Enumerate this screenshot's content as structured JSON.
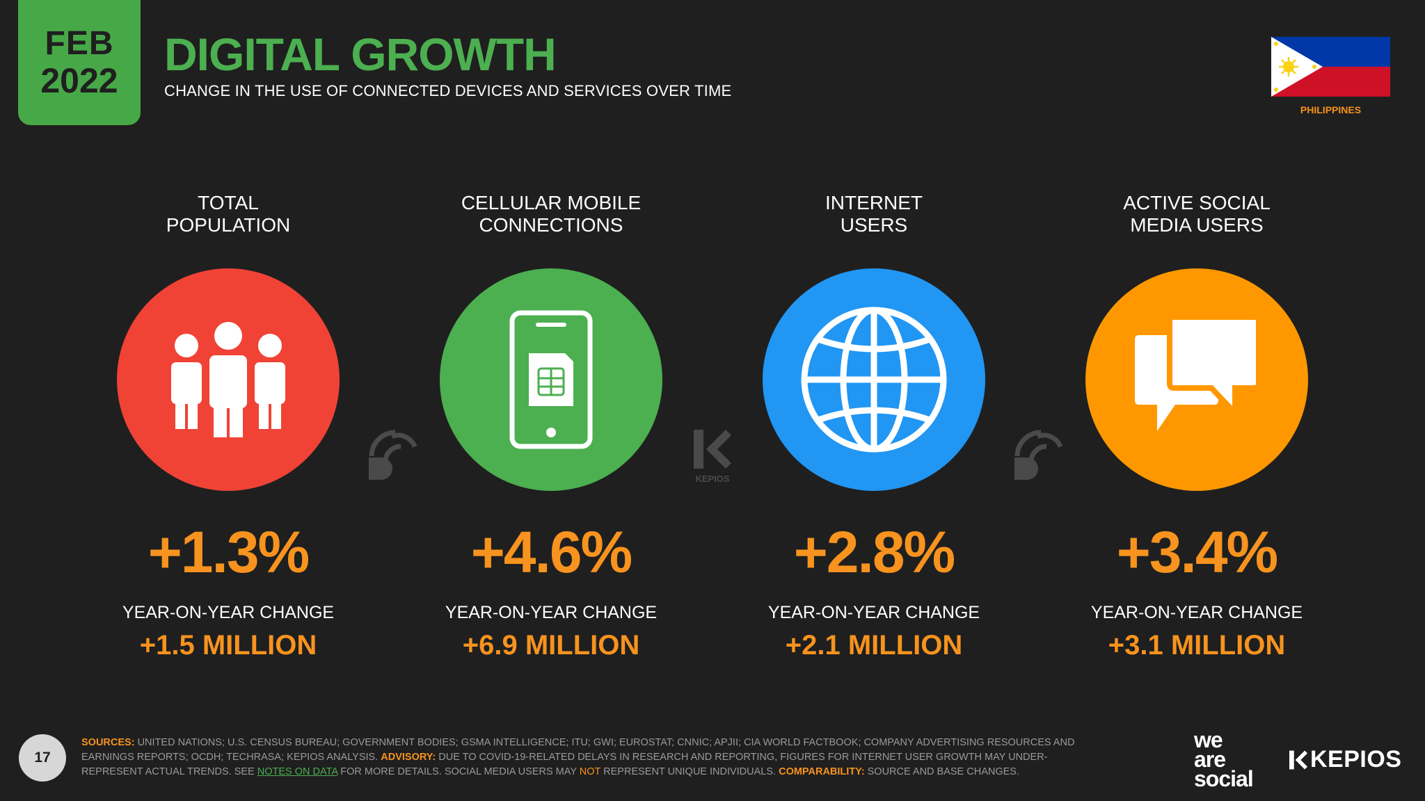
{
  "header": {
    "month": "FEB",
    "year": "2022",
    "title": "DIGITAL GROWTH",
    "subtitle": "CHANGE IN THE USE OF CONNECTED DEVICES AND SERVICES OVER TIME"
  },
  "country": {
    "name": "PHILIPPINES",
    "flag_icon": "philippines-flag-icon"
  },
  "colors": {
    "background": "#1f1f1f",
    "green": "#4caf50",
    "orange": "#f7931e",
    "red": "#f04336",
    "blue": "#2196f3",
    "amber": "#ff9800"
  },
  "stats": [
    {
      "label_line1": "TOTAL",
      "label_line2": "POPULATION",
      "icon": "people-icon",
      "color": "#f04336",
      "percent": "+1.3%",
      "yoy_label": "YEAR-ON-YEAR CHANGE",
      "absolute": "+1.5 MILLION"
    },
    {
      "label_line1": "CELLULAR MOBILE",
      "label_line2": "CONNECTIONS",
      "icon": "mobile-sim-icon",
      "color": "#4caf50",
      "percent": "+4.6%",
      "yoy_label": "YEAR-ON-YEAR CHANGE",
      "absolute": "+6.9 MILLION"
    },
    {
      "label_line1": "INTERNET",
      "label_line2": "USERS",
      "icon": "globe-icon",
      "color": "#2196f3",
      "percent": "+2.8%",
      "yoy_label": "YEAR-ON-YEAR CHANGE",
      "absolute": "+2.1 MILLION"
    },
    {
      "label_line1": "ACTIVE SOCIAL",
      "label_line2": "MEDIA USERS",
      "icon": "chat-bubbles-icon",
      "color": "#ff9800",
      "percent": "+3.4%",
      "yoy_label": "YEAR-ON-YEAR CHANGE",
      "absolute": "+3.1 MILLION"
    }
  ],
  "watermarks": {
    "kepios": "KEPIOS"
  },
  "footer": {
    "page_number": "17",
    "sources_label": "SOURCES:",
    "sources_text": " UNITED NATIONS; U.S. CENSUS BUREAU; GOVERNMENT BODIES; GSMA INTELLIGENCE; ITU; GWI; EUROSTAT; CNNIC; APJII; CIA WORLD FACTBOOK; COMPANY ADVERTISING RESOURCES AND EARNINGS REPORTS; OCDH; TECHRASA; KEPIOS ANALYSIS. ",
    "advisory_label": "ADVISORY:",
    "advisory_text": " DUE TO COVID-19-RELATED DELAYS IN RESEARCH AND REPORTING, FIGURES FOR INTERNET USER GROWTH MAY UNDER-REPRESENT ACTUAL TRENDS. SEE ",
    "notes_link": "NOTES ON DATA",
    "advisory_text2": " FOR MORE DETAILS. SOCIAL MEDIA USERS MAY ",
    "not_word": "NOT",
    "advisory_text3": " REPRESENT UNIQUE INDIVIDUALS. ",
    "comparability_label": "COMPARABILITY:",
    "comparability_text": " SOURCE AND BASE CHANGES.",
    "logo_was_line1": "we",
    "logo_was_line2": "are",
    "logo_was_line3": "social",
    "logo_kepios": "KEPIOS"
  }
}
